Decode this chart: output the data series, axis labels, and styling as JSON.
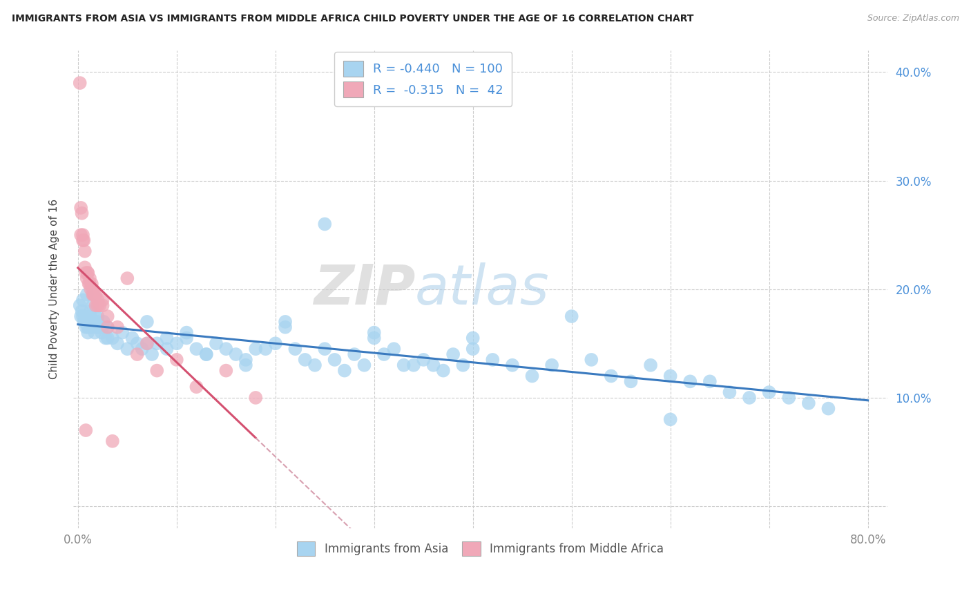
{
  "title": "IMMIGRANTS FROM ASIA VS IMMIGRANTS FROM MIDDLE AFRICA CHILD POVERTY UNDER THE AGE OF 16 CORRELATION CHART",
  "source": "Source: ZipAtlas.com",
  "xlabel_bottom": [
    "Immigrants from Asia",
    "Immigrants from Middle Africa"
  ],
  "ylabel": "Child Poverty Under the Age of 16",
  "watermark_zip": "ZIP",
  "watermark_atlas": "atlas",
  "xlim": [
    -0.005,
    0.82
  ],
  "ylim": [
    -0.02,
    0.42
  ],
  "xtick_vals": [
    0.0,
    0.1,
    0.2,
    0.3,
    0.4,
    0.5,
    0.6,
    0.7,
    0.8
  ],
  "ytick_vals": [
    0.0,
    0.1,
    0.2,
    0.3,
    0.4
  ],
  "legend_R_asia": "-0.440",
  "legend_N_asia": "100",
  "legend_R_africa": "-0.315",
  "legend_N_africa": "42",
  "color_asia": "#a8d4f0",
  "color_africa": "#f0a8b8",
  "line_color_asia": "#3a7abf",
  "line_color_africa": "#d45070",
  "line_color_africa_dash": "#d8a0b0",
  "ytick_color": "#4a90d9",
  "xtick_color": "#888888",
  "background_color": "#ffffff",
  "grid_color": "#cccccc",
  "asia_x": [
    0.002,
    0.003,
    0.004,
    0.005,
    0.006,
    0.007,
    0.008,
    0.009,
    0.01,
    0.011,
    0.012,
    0.013,
    0.014,
    0.015,
    0.016,
    0.017,
    0.018,
    0.019,
    0.02,
    0.022,
    0.024,
    0.026,
    0.028,
    0.03,
    0.035,
    0.04,
    0.045,
    0.05,
    0.055,
    0.06,
    0.065,
    0.07,
    0.075,
    0.08,
    0.09,
    0.1,
    0.11,
    0.12,
    0.13,
    0.14,
    0.15,
    0.16,
    0.17,
    0.18,
    0.19,
    0.2,
    0.21,
    0.22,
    0.23,
    0.24,
    0.25,
    0.26,
    0.27,
    0.28,
    0.29,
    0.3,
    0.31,
    0.32,
    0.33,
    0.34,
    0.35,
    0.36,
    0.37,
    0.38,
    0.39,
    0.4,
    0.42,
    0.44,
    0.46,
    0.48,
    0.5,
    0.52,
    0.54,
    0.56,
    0.58,
    0.6,
    0.62,
    0.64,
    0.66,
    0.68,
    0.7,
    0.72,
    0.74,
    0.76,
    0.005,
    0.01,
    0.015,
    0.02,
    0.025,
    0.03,
    0.07,
    0.09,
    0.11,
    0.13,
    0.17,
    0.21,
    0.25,
    0.3,
    0.4,
    0.6
  ],
  "asia_y": [
    0.185,
    0.175,
    0.18,
    0.19,
    0.17,
    0.175,
    0.165,
    0.195,
    0.16,
    0.17,
    0.175,
    0.18,
    0.165,
    0.185,
    0.17,
    0.16,
    0.175,
    0.165,
    0.17,
    0.165,
    0.16,
    0.17,
    0.155,
    0.165,
    0.155,
    0.15,
    0.16,
    0.145,
    0.155,
    0.15,
    0.145,
    0.15,
    0.14,
    0.15,
    0.145,
    0.15,
    0.16,
    0.145,
    0.14,
    0.15,
    0.145,
    0.14,
    0.135,
    0.145,
    0.145,
    0.15,
    0.165,
    0.145,
    0.135,
    0.13,
    0.145,
    0.135,
    0.125,
    0.14,
    0.13,
    0.155,
    0.14,
    0.145,
    0.13,
    0.13,
    0.135,
    0.13,
    0.125,
    0.14,
    0.13,
    0.145,
    0.135,
    0.13,
    0.12,
    0.13,
    0.175,
    0.135,
    0.12,
    0.115,
    0.13,
    0.12,
    0.115,
    0.115,
    0.105,
    0.1,
    0.105,
    0.1,
    0.095,
    0.09,
    0.175,
    0.165,
    0.17,
    0.175,
    0.165,
    0.155,
    0.17,
    0.155,
    0.155,
    0.14,
    0.13,
    0.17,
    0.26,
    0.16,
    0.155,
    0.08
  ],
  "africa_x": [
    0.002,
    0.003,
    0.004,
    0.005,
    0.006,
    0.007,
    0.008,
    0.009,
    0.01,
    0.011,
    0.012,
    0.013,
    0.014,
    0.015,
    0.016,
    0.017,
    0.018,
    0.02,
    0.022,
    0.025,
    0.003,
    0.005,
    0.007,
    0.01,
    0.012,
    0.015,
    0.018,
    0.02,
    0.025,
    0.03,
    0.04,
    0.05,
    0.06,
    0.07,
    0.08,
    0.1,
    0.12,
    0.15,
    0.18,
    0.03,
    0.008,
    0.035
  ],
  "africa_y": [
    0.39,
    0.275,
    0.27,
    0.25,
    0.245,
    0.22,
    0.215,
    0.21,
    0.215,
    0.205,
    0.205,
    0.2,
    0.205,
    0.195,
    0.195,
    0.195,
    0.185,
    0.185,
    0.185,
    0.19,
    0.25,
    0.245,
    0.235,
    0.215,
    0.21,
    0.2,
    0.195,
    0.19,
    0.185,
    0.175,
    0.165,
    0.21,
    0.14,
    0.15,
    0.125,
    0.135,
    0.11,
    0.125,
    0.1,
    0.165,
    0.07,
    0.06
  ]
}
